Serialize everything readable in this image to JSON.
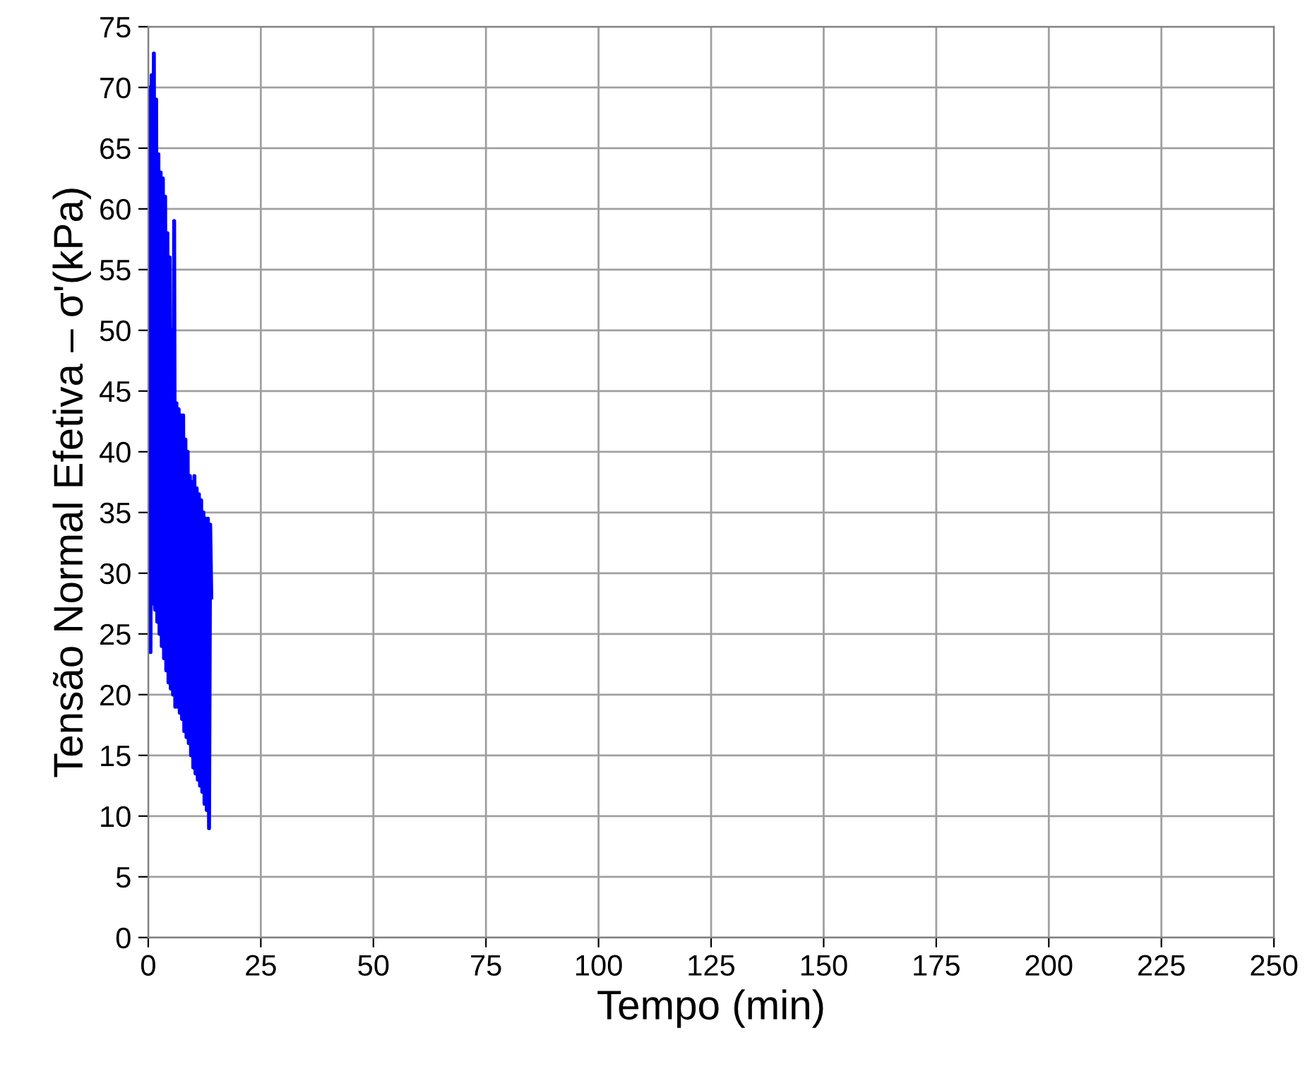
{
  "chart_data": {
    "type": "line",
    "xlabel": "Tempo (min)",
    "ylabel": "Tensão Normal Efetiva – σ'(kPa)",
    "x": [
      0,
      0.25,
      0.5,
      0.75,
      1.0,
      1.25,
      1.5,
      1.75,
      2.0,
      2.25,
      2.5,
      2.75,
      3.0,
      3.25,
      3.5,
      3.75,
      4.0,
      4.25,
      4.5,
      4.75,
      5.0,
      5.25,
      5.5,
      5.75,
      6.0,
      6.25,
      6.5,
      6.75,
      7.0,
      7.25,
      7.5,
      7.75,
      8.0,
      8.25,
      8.5,
      8.75,
      9.0,
      9.25,
      9.5,
      9.75,
      10.0,
      10.25,
      10.5,
      10.75,
      11.0,
      11.25,
      11.5,
      11.75,
      12.0,
      12.25,
      12.5,
      12.75,
      13.0,
      13.25,
      13.5,
      13.75,
      14.0
    ],
    "series": [
      {
        "color": "#0000ff",
        "values": [
          40,
          70,
          23.5,
          71,
          27.5,
          72.8,
          27,
          69,
          26,
          64.5,
          25,
          63,
          24,
          62.5,
          23,
          61,
          22,
          58,
          21,
          56,
          20.5,
          50,
          20,
          59,
          19,
          44,
          19,
          43.5,
          18.5,
          43,
          18,
          43,
          17,
          41,
          16.5,
          40,
          16,
          38,
          15,
          37.5,
          14,
          38,
          13.5,
          37,
          13,
          36.5,
          12.5,
          36,
          12,
          35,
          11,
          34.5,
          10.5,
          34.5,
          9,
          34,
          28
        ]
      }
    ],
    "xlim": [
      0,
      250
    ],
    "xticks": [
      0,
      25,
      50,
      75,
      100,
      125,
      150,
      175,
      200,
      225,
      250
    ],
    "ylim": [
      0,
      75
    ],
    "yticks": [
      0,
      5,
      10,
      15,
      20,
      25,
      30,
      35,
      40,
      45,
      50,
      55,
      60,
      65,
      70,
      75
    ],
    "grid": true,
    "marker": "none",
    "line_style": "solid"
  }
}
